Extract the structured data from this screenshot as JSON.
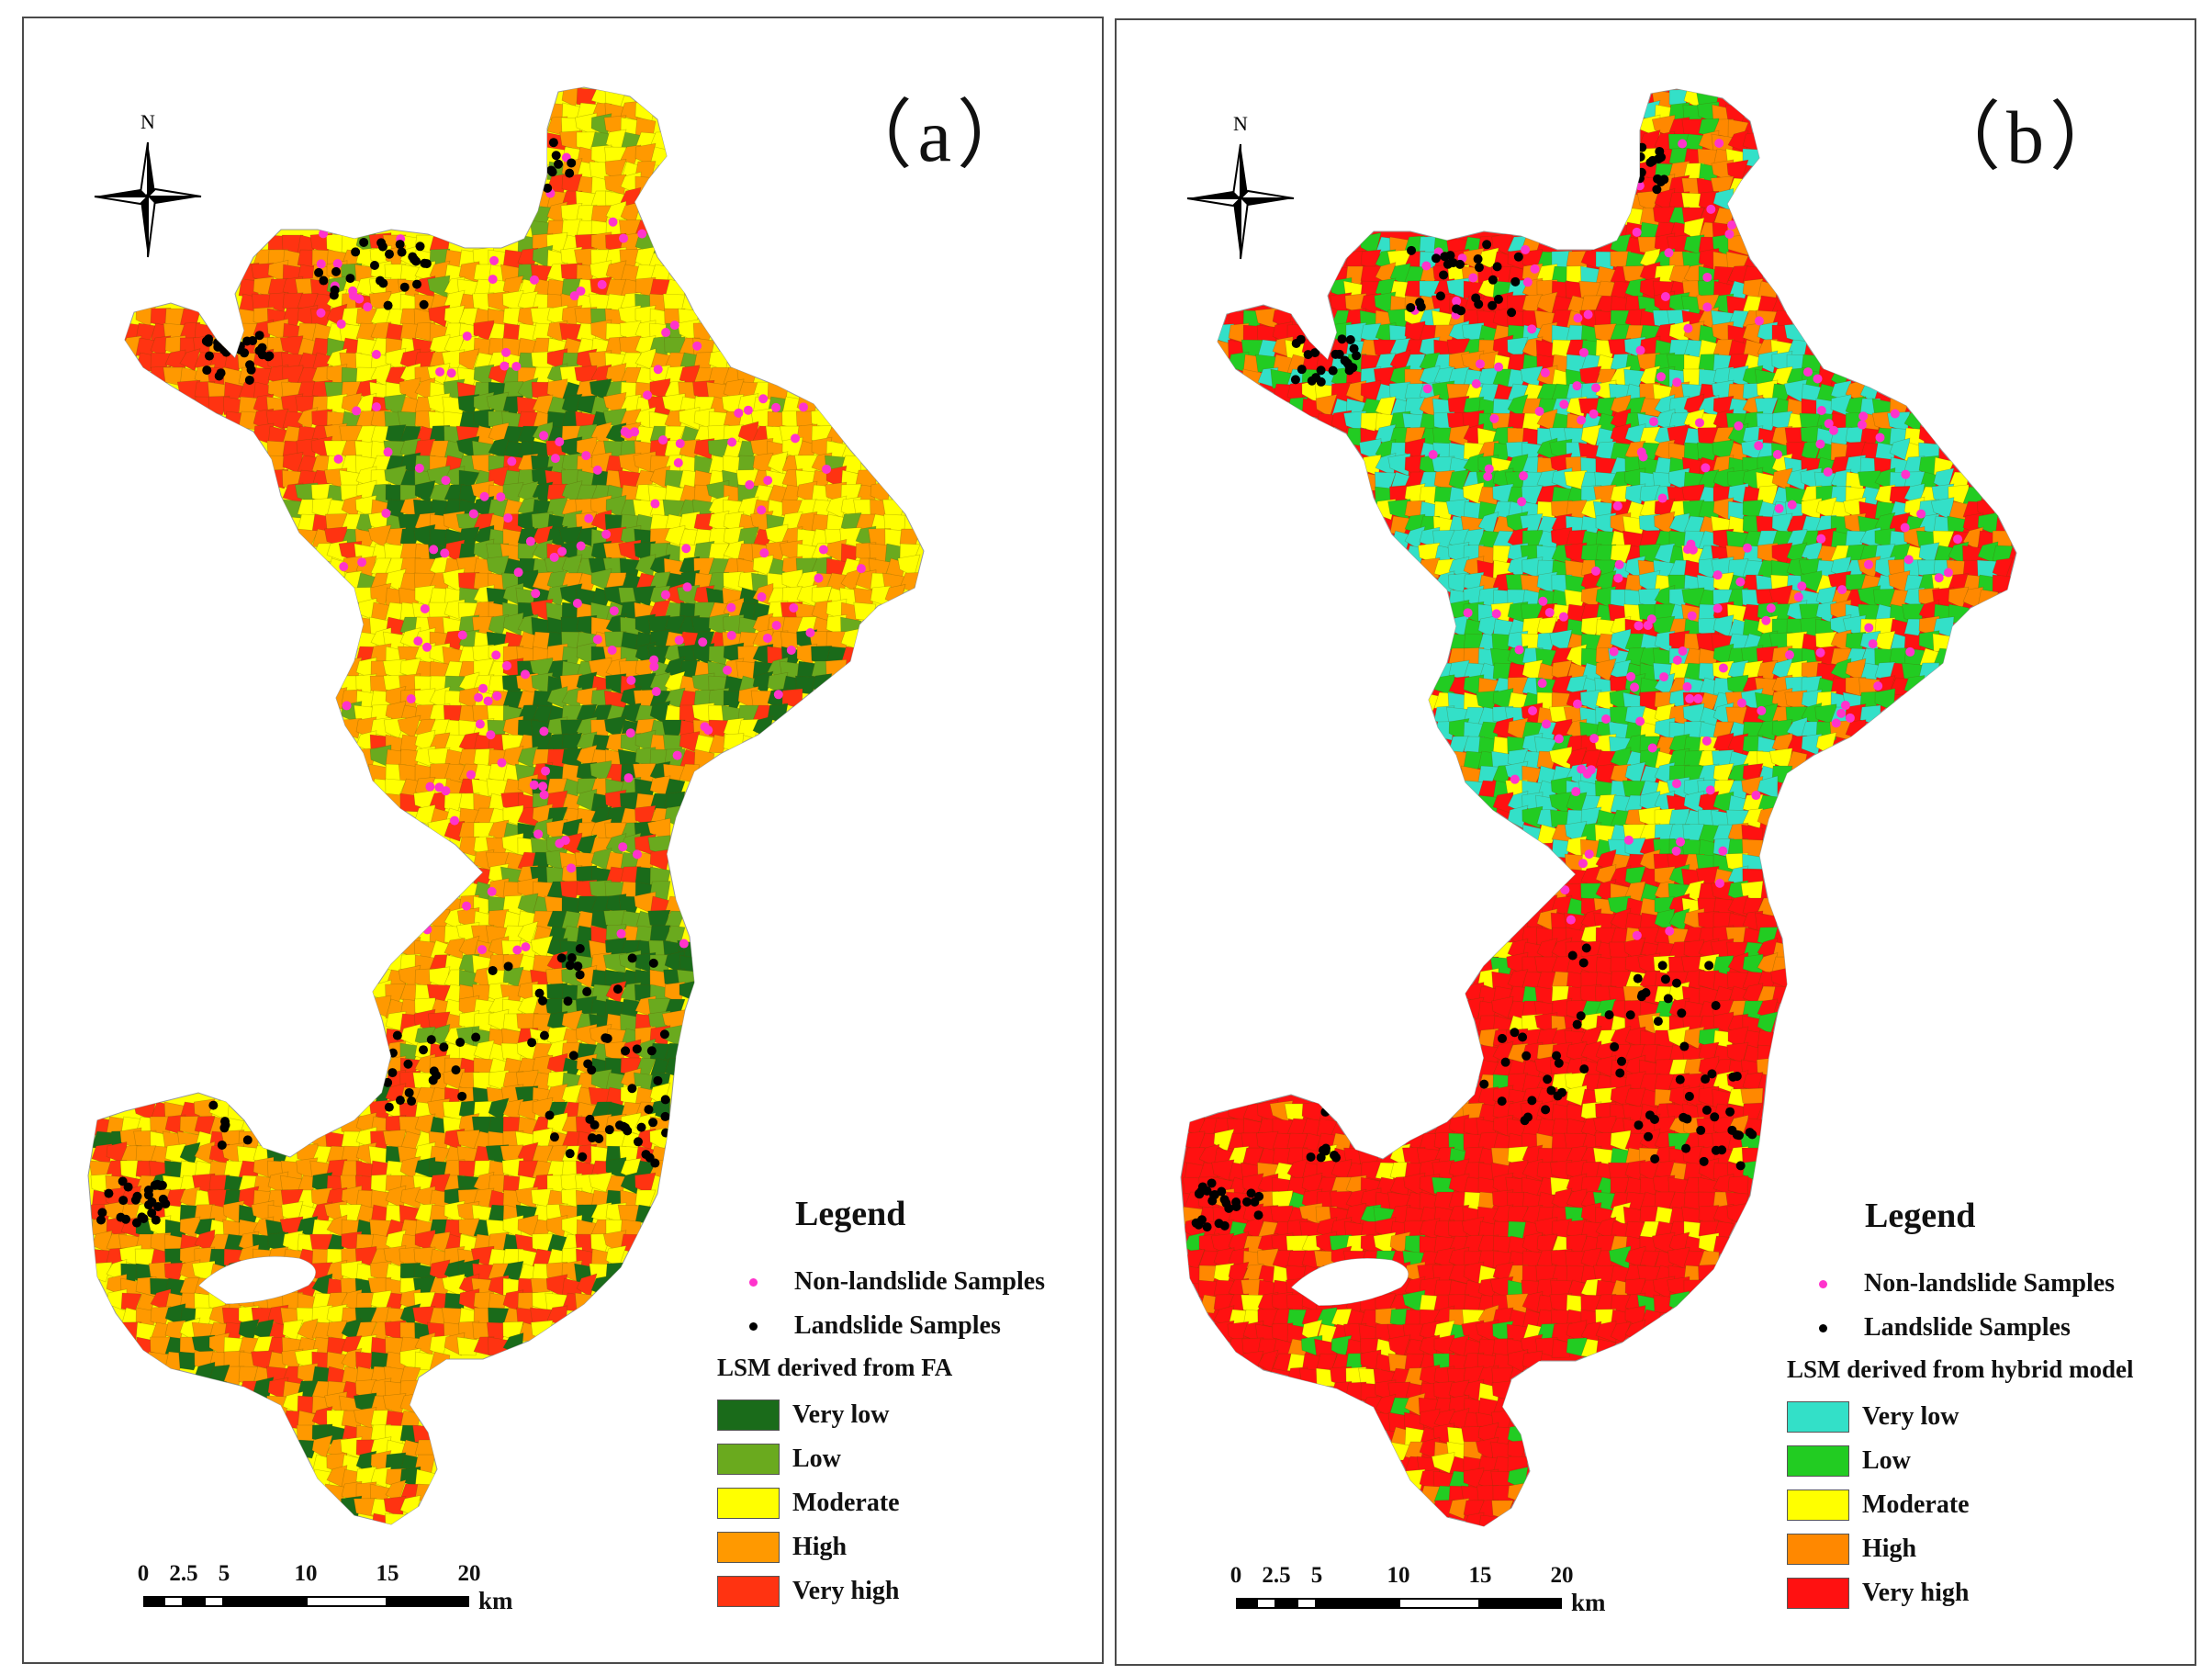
{
  "panels": [
    {
      "id": "a",
      "label": "（a）",
      "compass_letter": "N",
      "legend": {
        "title": "Legend",
        "samples": [
          {
            "label": "Non-landslide Samples",
            "color": "#ff33cc"
          },
          {
            "label": "Landslide Samples",
            "color": "#000000"
          }
        ],
        "subtitle": "LSM derived from FA",
        "classes": [
          {
            "label": "Very low",
            "color": "#1a6b1a"
          },
          {
            "label": "Low",
            "color": "#6aaa1e"
          },
          {
            "label": "Moderate",
            "color": "#ffff00"
          },
          {
            "label": "High",
            "color": "#ff9900"
          },
          {
            "label": "Very high",
            "color": "#ff3311"
          }
        ]
      },
      "scale": {
        "ticks": [
          "0",
          "2.5",
          "5",
          "10",
          "15",
          "20"
        ],
        "unit": "km"
      }
    },
    {
      "id": "b",
      "label": "（b）",
      "compass_letter": "N",
      "legend": {
        "title": "Legend",
        "samples": [
          {
            "label": "Non-landslide Samples",
            "color": "#ff33cc"
          },
          {
            "label": "Landslide Samples",
            "color": "#000000"
          }
        ],
        "subtitle": "LSM derived from hybrid model",
        "classes": [
          {
            "label": "Very low",
            "color": "#33e0c8"
          },
          {
            "label": "Low",
            "color": "#22cc22"
          },
          {
            "label": "Moderate",
            "color": "#ffff00"
          },
          {
            "label": "High",
            "color": "#ff8800"
          },
          {
            "label": "Very high",
            "color": "#ff1111"
          }
        ]
      },
      "scale": {
        "ticks": [
          "0",
          "2.5",
          "5",
          "10",
          "15",
          "20"
        ],
        "unit": "km"
      }
    }
  ]
}
